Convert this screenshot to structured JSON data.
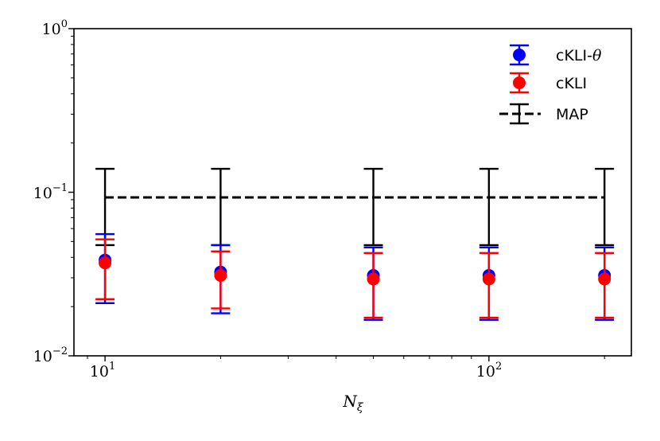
{
  "chart_data": {
    "type": "scatter",
    "x_scale": "log",
    "y_scale": "log",
    "xlim": [
      8.3,
      235
    ],
    "ylim": [
      0.01,
      1
    ],
    "x": [
      10,
      20,
      50,
      100,
      200
    ],
    "xlabel": "N_ξ",
    "xlabel_main": "N",
    "xlabel_sub": "ξ",
    "x_ticks": [
      {
        "base": "10",
        "exp": "1"
      },
      {
        "base": "10",
        "exp": "2"
      }
    ],
    "y_ticks": [
      {
        "base": "10",
        "exp": "−2"
      },
      {
        "base": "10",
        "exp": "−1"
      },
      {
        "base": "10",
        "exp": "0"
      }
    ],
    "grid": false,
    "legend_position": "top-right",
    "series": [
      {
        "name": "cKLI-θ",
        "name_main": "cKLI-",
        "name_symbol": "θ",
        "style": "points-errorbars",
        "color": "#0000ff",
        "values": [
          0.0385,
          0.0325,
          0.031,
          0.031,
          0.031
        ],
        "err_low": [
          0.021,
          0.0182,
          0.0166,
          0.0166,
          0.0166
        ],
        "err_high": [
          0.0555,
          0.0475,
          0.046,
          0.046,
          0.046
        ]
      },
      {
        "name": "cKLI",
        "style": "points-errorbars",
        "color": "#ff0000",
        "values": [
          0.037,
          0.031,
          0.0295,
          0.0295,
          0.0295
        ],
        "err_low": [
          0.0222,
          0.0195,
          0.0171,
          0.0171,
          0.0171
        ],
        "err_high": [
          0.0515,
          0.0435,
          0.0425,
          0.0425,
          0.0425
        ]
      },
      {
        "name": "MAP",
        "style": "dashed-errorbars",
        "color": "#000000",
        "values": [
          0.093,
          0.093,
          0.093,
          0.093,
          0.093
        ],
        "err_low": [
          0.0475,
          0.0475,
          0.0475,
          0.0475,
          0.0475
        ],
        "err_high": [
          0.139,
          0.139,
          0.139,
          0.139,
          0.139
        ]
      }
    ]
  }
}
